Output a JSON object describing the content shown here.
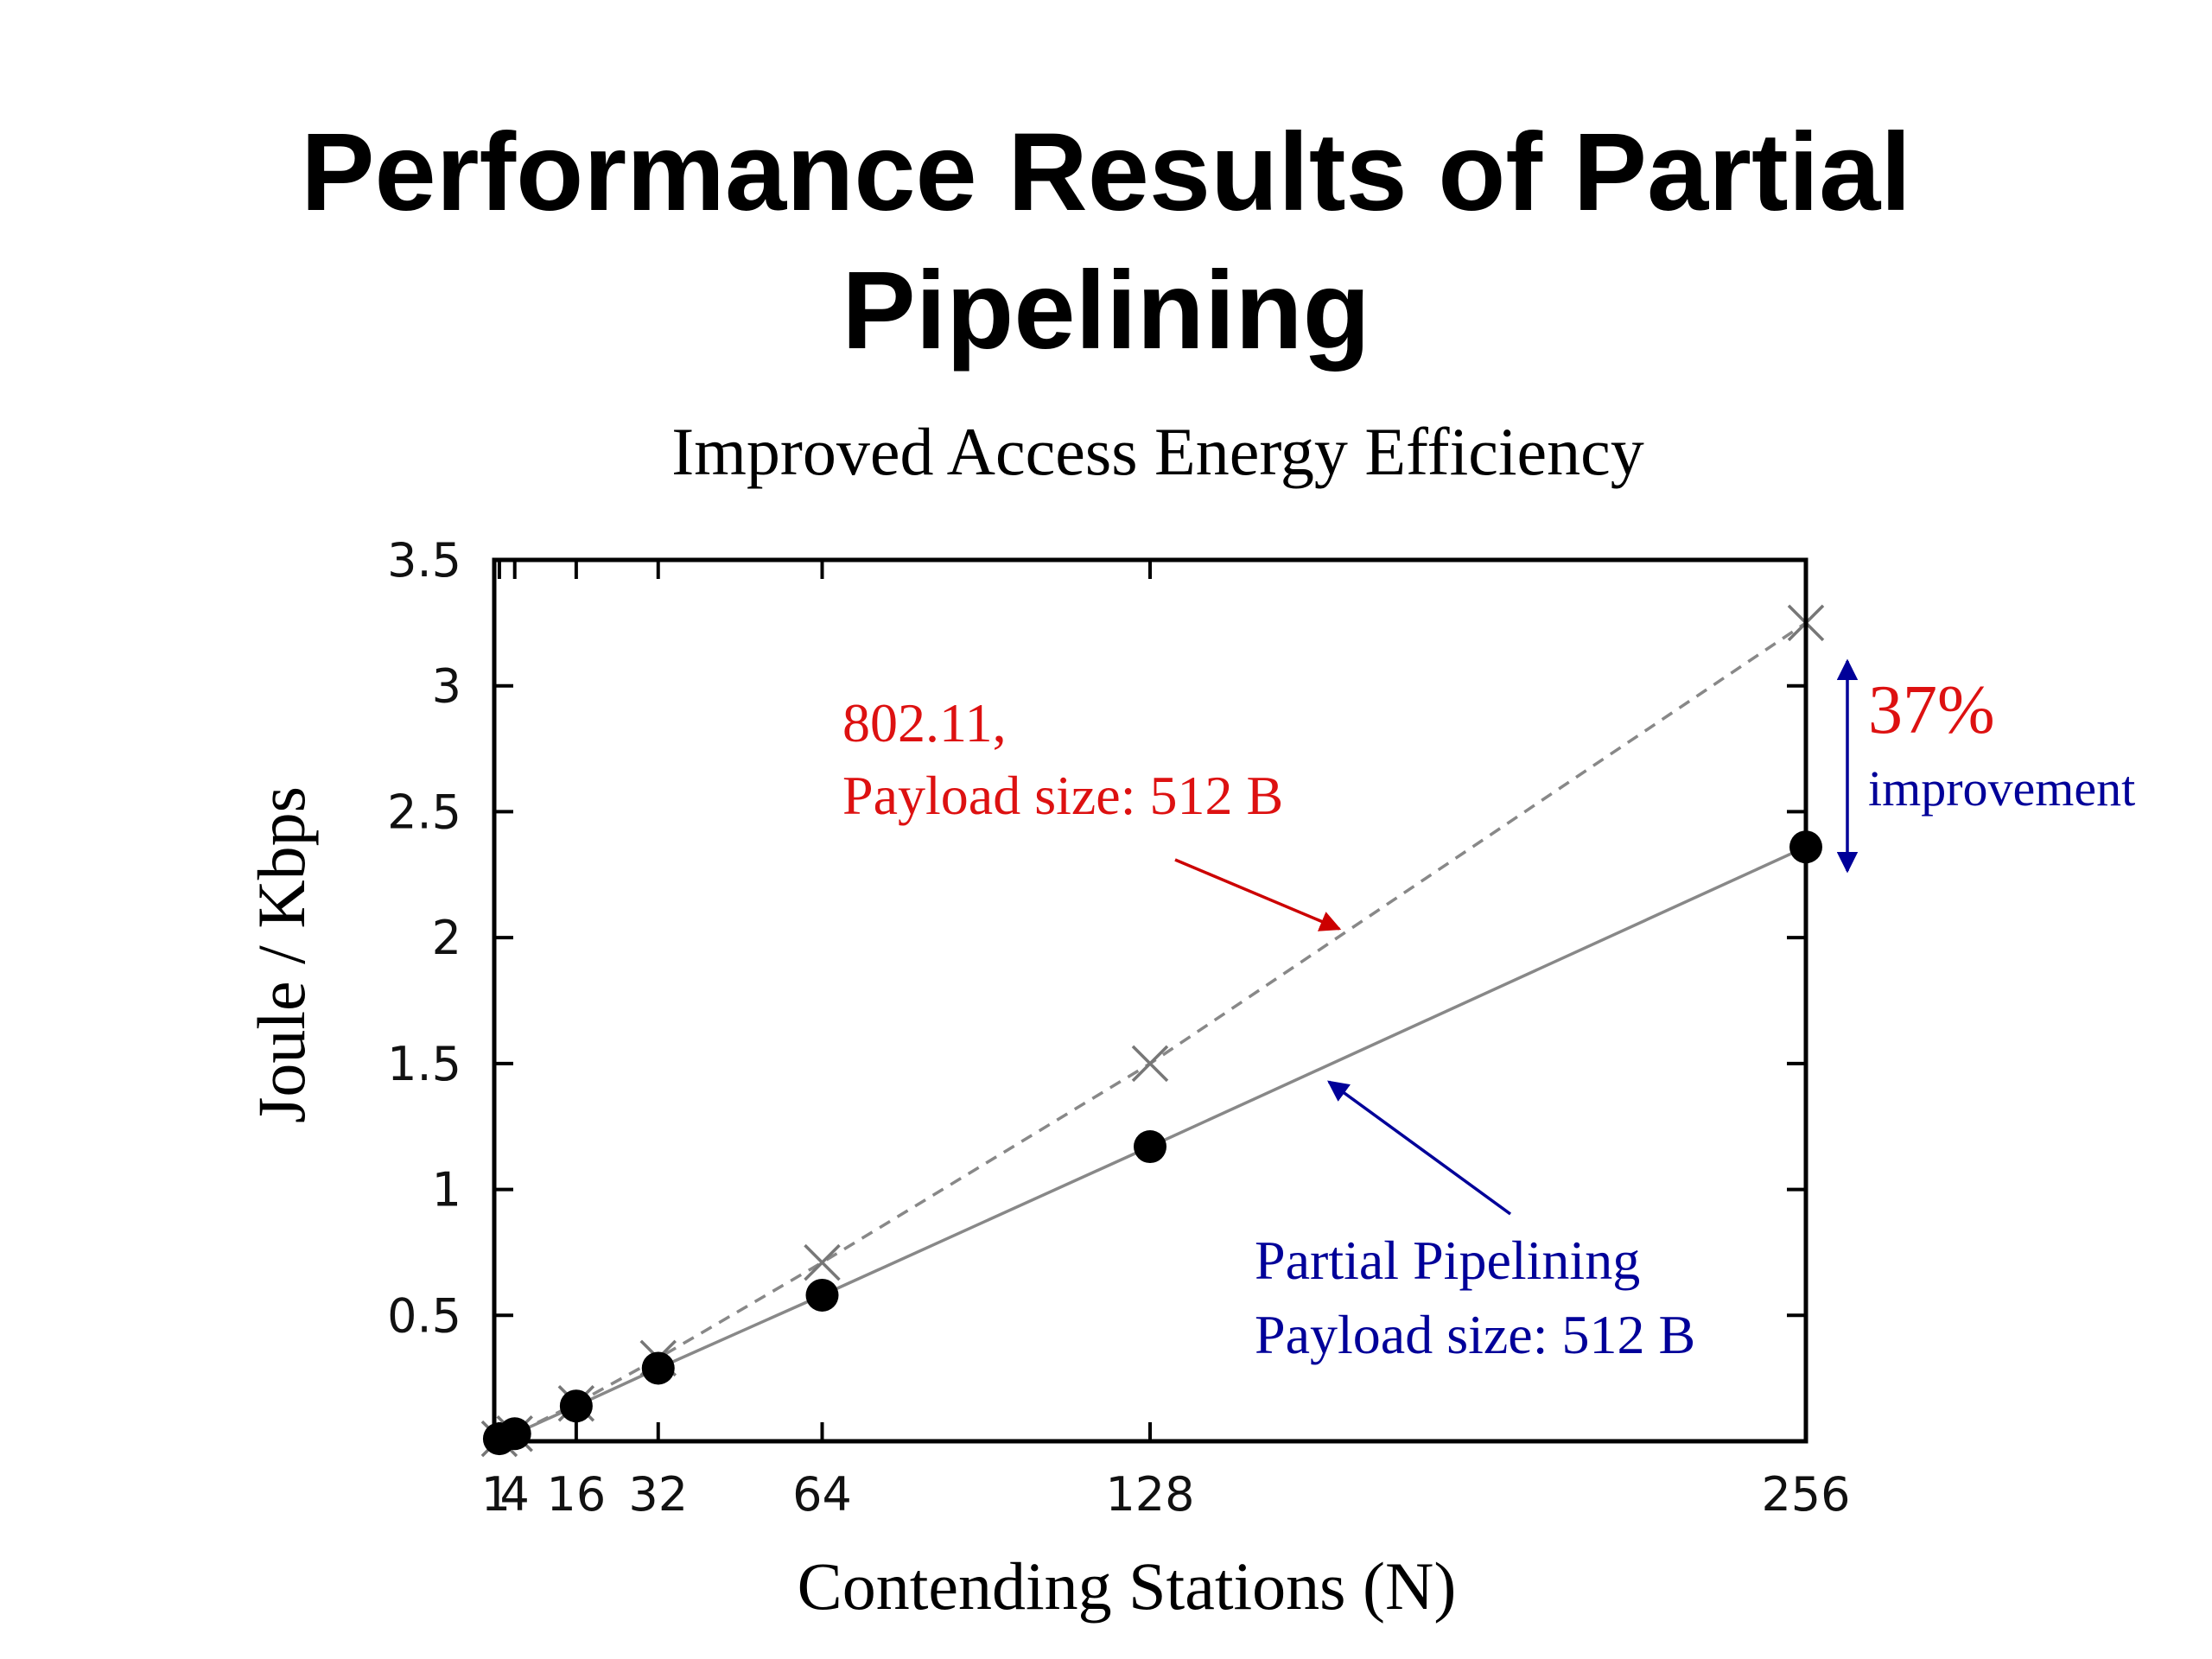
{
  "slide": {
    "title_line1": "Performance Results of Partial",
    "title_line2": "Pipelining",
    "subtitle": "Improved Access Energy Efficiency"
  },
  "chart_data": {
    "type": "line",
    "xlabel": "Contending Stations (N)",
    "ylabel": "Joule / Kbps",
    "x_ticks": [
      1,
      4,
      16,
      32,
      64,
      128,
      256
    ],
    "x_tick_labels": [
      "1",
      "4",
      "16",
      "32",
      "64",
      "128",
      "256"
    ],
    "y_ticks": [
      0.5,
      1,
      1.5,
      2,
      2.5,
      3,
      3.5
    ],
    "y_tick_labels": [
      "0.5",
      "1",
      "1.5",
      "2",
      "2.5",
      "3",
      "3.5"
    ],
    "xlim": [
      0,
      256
    ],
    "ylim": [
      0,
      3.5
    ],
    "grid": false,
    "series": [
      {
        "key": "ieee80211",
        "x": [
          1,
          4,
          16,
          32,
          64,
          128,
          256
        ],
        "y": [
          0.01,
          0.03,
          0.15,
          0.33,
          0.71,
          1.5,
          3.25
        ],
        "color": "#888888",
        "line_style": "dashed",
        "marker": "cross"
      },
      {
        "key": "partial_pipelining",
        "x": [
          1,
          4,
          16,
          32,
          64,
          128,
          256
        ],
        "y": [
          0.01,
          0.03,
          0.14,
          0.29,
          0.58,
          1.17,
          2.36
        ],
        "color": "#888888",
        "line_style": "solid",
        "marker": "filled-circle"
      }
    ],
    "annotations": {
      "ieee80211_label_line1": "802.11,",
      "ieee80211_label_line2": "Payload size: 512 B",
      "ieee80211_color": "#dd1111",
      "pp_label_line1": "Partial Pipelining",
      "pp_label_line2": "Payload size: 512 B",
      "pp_color": "#000099",
      "improvement_pct": "37%",
      "improvement_pct_color": "#dd1111",
      "improvement_word": "improvement",
      "improvement_word_color": "#000099"
    }
  }
}
